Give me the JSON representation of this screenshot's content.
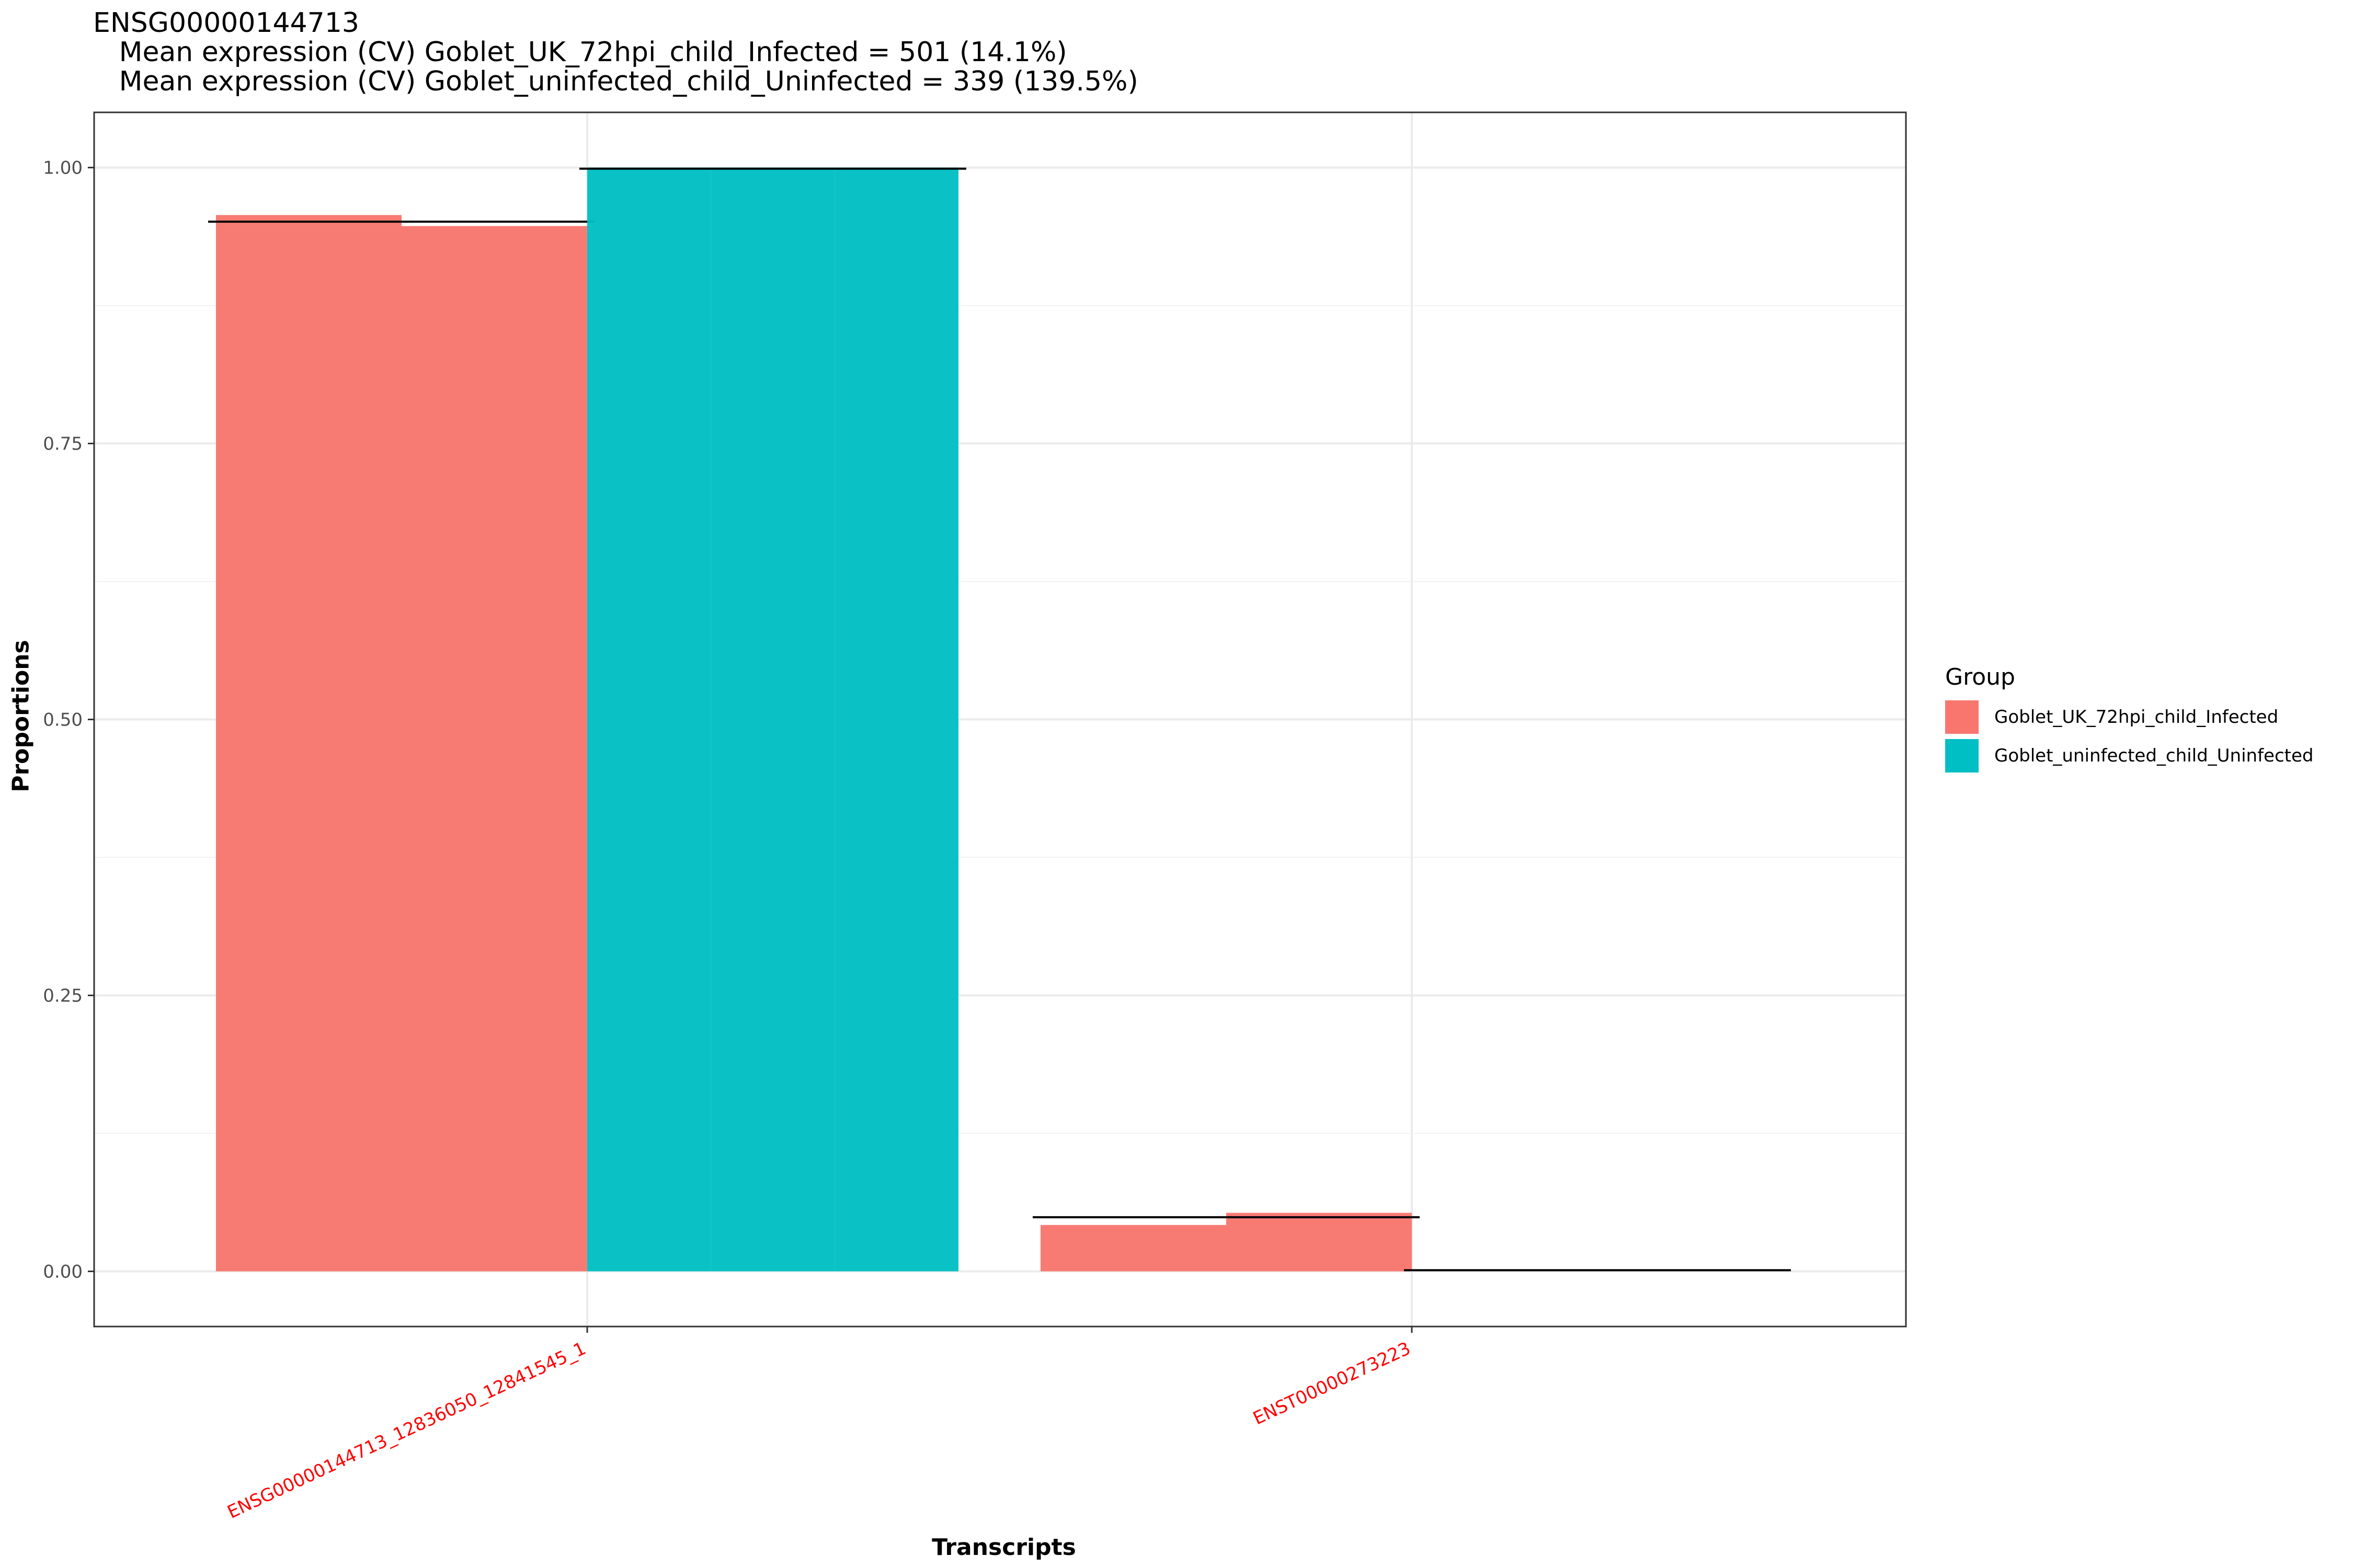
{
  "title_lines": [
    "ENSG00000144713",
    "   Mean expression (CV) Goblet_UK_72hpi_child_Infected = 501 (14.1%)",
    "   Mean expression (CV) Goblet_uninfected_child_Uninfected = 339 (139.5%)"
  ],
  "legend": {
    "title": "Group",
    "items": [
      {
        "label": "Goblet_UK_72hpi_child_Infected",
        "color": "#F8766D"
      },
      {
        "label": "Goblet_uninfected_child_Uninfected",
        "color": "#00BFC4"
      }
    ]
  },
  "chart_data": {
    "type": "bar",
    "xlabel": "Transcripts",
    "ylabel": "Proportions",
    "ylim": [
      -0.05,
      1.05
    ],
    "yticks": [
      0.0,
      0.25,
      0.5,
      0.75,
      1.0
    ],
    "ytick_labels": [
      "0.00",
      "0.25",
      "0.50",
      "0.75",
      "1.00"
    ],
    "categories": [
      "ENSG00000144713_12836050_12841545_1",
      "ENST00000273223"
    ],
    "category_label_color": "#FF0000",
    "grid": true,
    "legend_position": "right",
    "series": [
      {
        "name": "Goblet_UK_72hpi_child_Infected",
        "color": "#F8766D",
        "samples": [
          [
            0.957,
            0.947
          ],
          [
            0.042,
            0.053
          ]
        ],
        "means": [
          0.951,
          0.049
        ]
      },
      {
        "name": "Goblet_uninfected_child_Uninfected",
        "color": "#00BFC4",
        "samples": [
          [
            1.0,
            1.0,
            1.0
          ],
          [
            0.0,
            0.0,
            0.0
          ]
        ],
        "means": [
          0.999,
          0.001
        ]
      }
    ]
  }
}
